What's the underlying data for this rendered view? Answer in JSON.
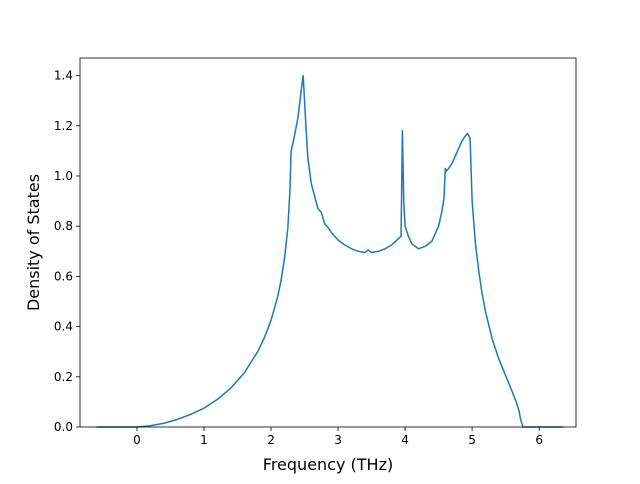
{
  "chart_data": {
    "type": "line",
    "title": "",
    "xlabel": "Frequency (THz)",
    "ylabel": "Density of States",
    "xlim": [
      -0.85,
      6.55
    ],
    "ylim": [
      0.0,
      1.47
    ],
    "xticks": [
      0,
      1,
      2,
      3,
      4,
      5,
      6
    ],
    "yticks": [
      0.0,
      0.2,
      0.4,
      0.6,
      0.8,
      1.0,
      1.2,
      1.4
    ],
    "ytick_labels": [
      "0.0",
      "0.2",
      "0.4",
      "0.6",
      "0.8",
      "1.0",
      "1.2",
      "1.4"
    ],
    "grid": false,
    "legend": null,
    "series": [
      {
        "color": "#1f77b4",
        "x": [
          -0.6,
          -0.3,
          0.0,
          0.2,
          0.4,
          0.6,
          0.8,
          1.0,
          1.2,
          1.4,
          1.6,
          1.8,
          1.9,
          2.0,
          2.1,
          2.15,
          2.2,
          2.25,
          2.28,
          2.3,
          2.35,
          2.4,
          2.45,
          2.48,
          2.5,
          2.52,
          2.55,
          2.6,
          2.65,
          2.7,
          2.75,
          2.8,
          2.85,
          2.9,
          3.0,
          3.1,
          3.2,
          3.3,
          3.4,
          3.45,
          3.5,
          3.6,
          3.7,
          3.8,
          3.9,
          3.94,
          3.96,
          3.98,
          4.0,
          4.05,
          4.1,
          4.2,
          4.3,
          4.4,
          4.45,
          4.5,
          4.55,
          4.58,
          4.6,
          4.62,
          4.65,
          4.7,
          4.75,
          4.8,
          4.85,
          4.9,
          4.93,
          4.95,
          4.97,
          5.0,
          5.05,
          5.1,
          5.15,
          5.2,
          5.3,
          5.4,
          5.5,
          5.6,
          5.65,
          5.7,
          5.72,
          5.74,
          5.76,
          5.8,
          6.0,
          6.35
        ],
        "y": [
          0.0,
          0.0,
          0.0,
          0.005,
          0.015,
          0.03,
          0.05,
          0.075,
          0.11,
          0.155,
          0.215,
          0.3,
          0.355,
          0.425,
          0.52,
          0.585,
          0.67,
          0.79,
          0.93,
          1.1,
          1.16,
          1.23,
          1.34,
          1.4,
          1.3,
          1.2,
          1.07,
          0.97,
          0.92,
          0.87,
          0.855,
          0.81,
          0.795,
          0.775,
          0.745,
          0.725,
          0.71,
          0.7,
          0.695,
          0.705,
          0.695,
          0.7,
          0.71,
          0.725,
          0.75,
          0.76,
          1.18,
          0.9,
          0.8,
          0.76,
          0.73,
          0.71,
          0.72,
          0.74,
          0.77,
          0.8,
          0.86,
          0.91,
          1.03,
          1.02,
          1.03,
          1.05,
          1.08,
          1.11,
          1.14,
          1.16,
          1.17,
          1.16,
          1.15,
          0.9,
          0.73,
          0.62,
          0.53,
          0.46,
          0.35,
          0.27,
          0.205,
          0.14,
          0.105,
          0.065,
          0.035,
          0.015,
          0.0,
          0.0,
          0.0,
          0.0
        ]
      }
    ]
  }
}
